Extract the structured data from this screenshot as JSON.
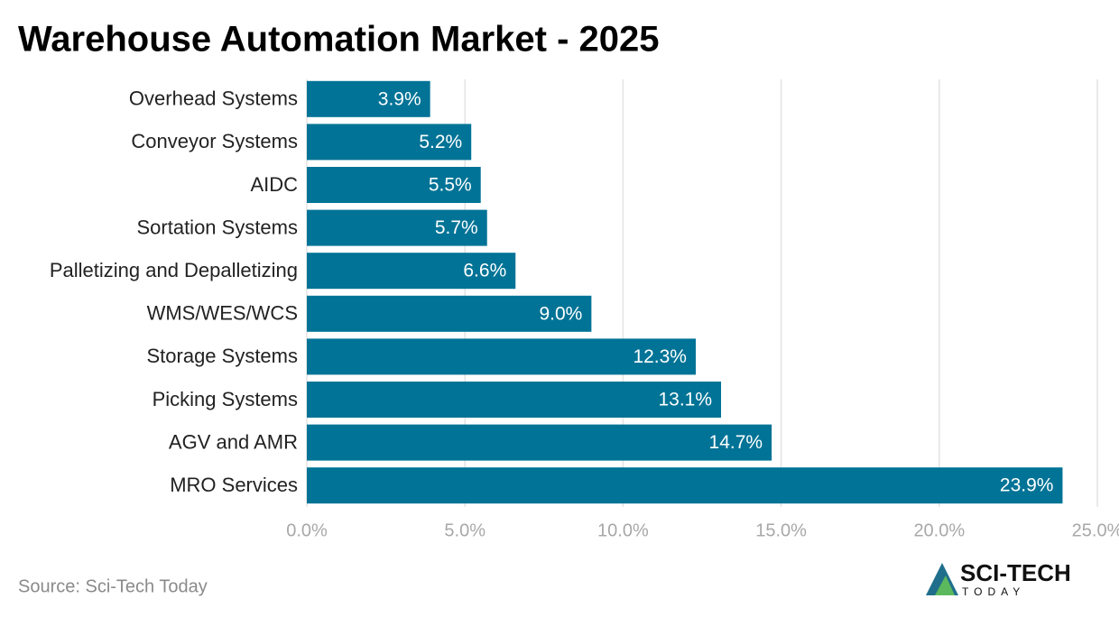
{
  "chart_data": {
    "type": "bar",
    "orientation": "horizontal",
    "title": "Warehouse Automation Market - 2025",
    "categories": [
      "Overhead Systems",
      "Conveyor Systems",
      "AIDC",
      "Sortation Systems",
      "Palletizing and Depalletizing",
      "WMS/WES/WCS",
      "Storage Systems",
      "Picking Systems",
      "AGV and AMR",
      "MRO Services"
    ],
    "values": [
      3.9,
      5.2,
      5.5,
      5.7,
      6.6,
      9.0,
      12.3,
      13.1,
      14.7,
      23.9
    ],
    "value_labels": [
      "3.9%",
      "5.2%",
      "5.5%",
      "5.7%",
      "6.6%",
      "9.0%",
      "12.3%",
      "13.1%",
      "14.7%",
      "23.9%"
    ],
    "color": "#007396",
    "xlim": [
      0,
      25
    ],
    "xticks": [
      {
        "value": 0,
        "label": "0.0%"
      },
      {
        "value": 5,
        "label": "5.0%"
      },
      {
        "value": 10,
        "label": "10.0%"
      },
      {
        "value": 15,
        "label": "15.0%"
      },
      {
        "value": 20,
        "label": "20.0%"
      },
      {
        "value": 25,
        "label": "25.0%"
      }
    ],
    "grid": true,
    "source": "Source: Sci-Tech Today"
  },
  "logo": {
    "name": "SCI-TECH",
    "tagline": "TODAY"
  }
}
